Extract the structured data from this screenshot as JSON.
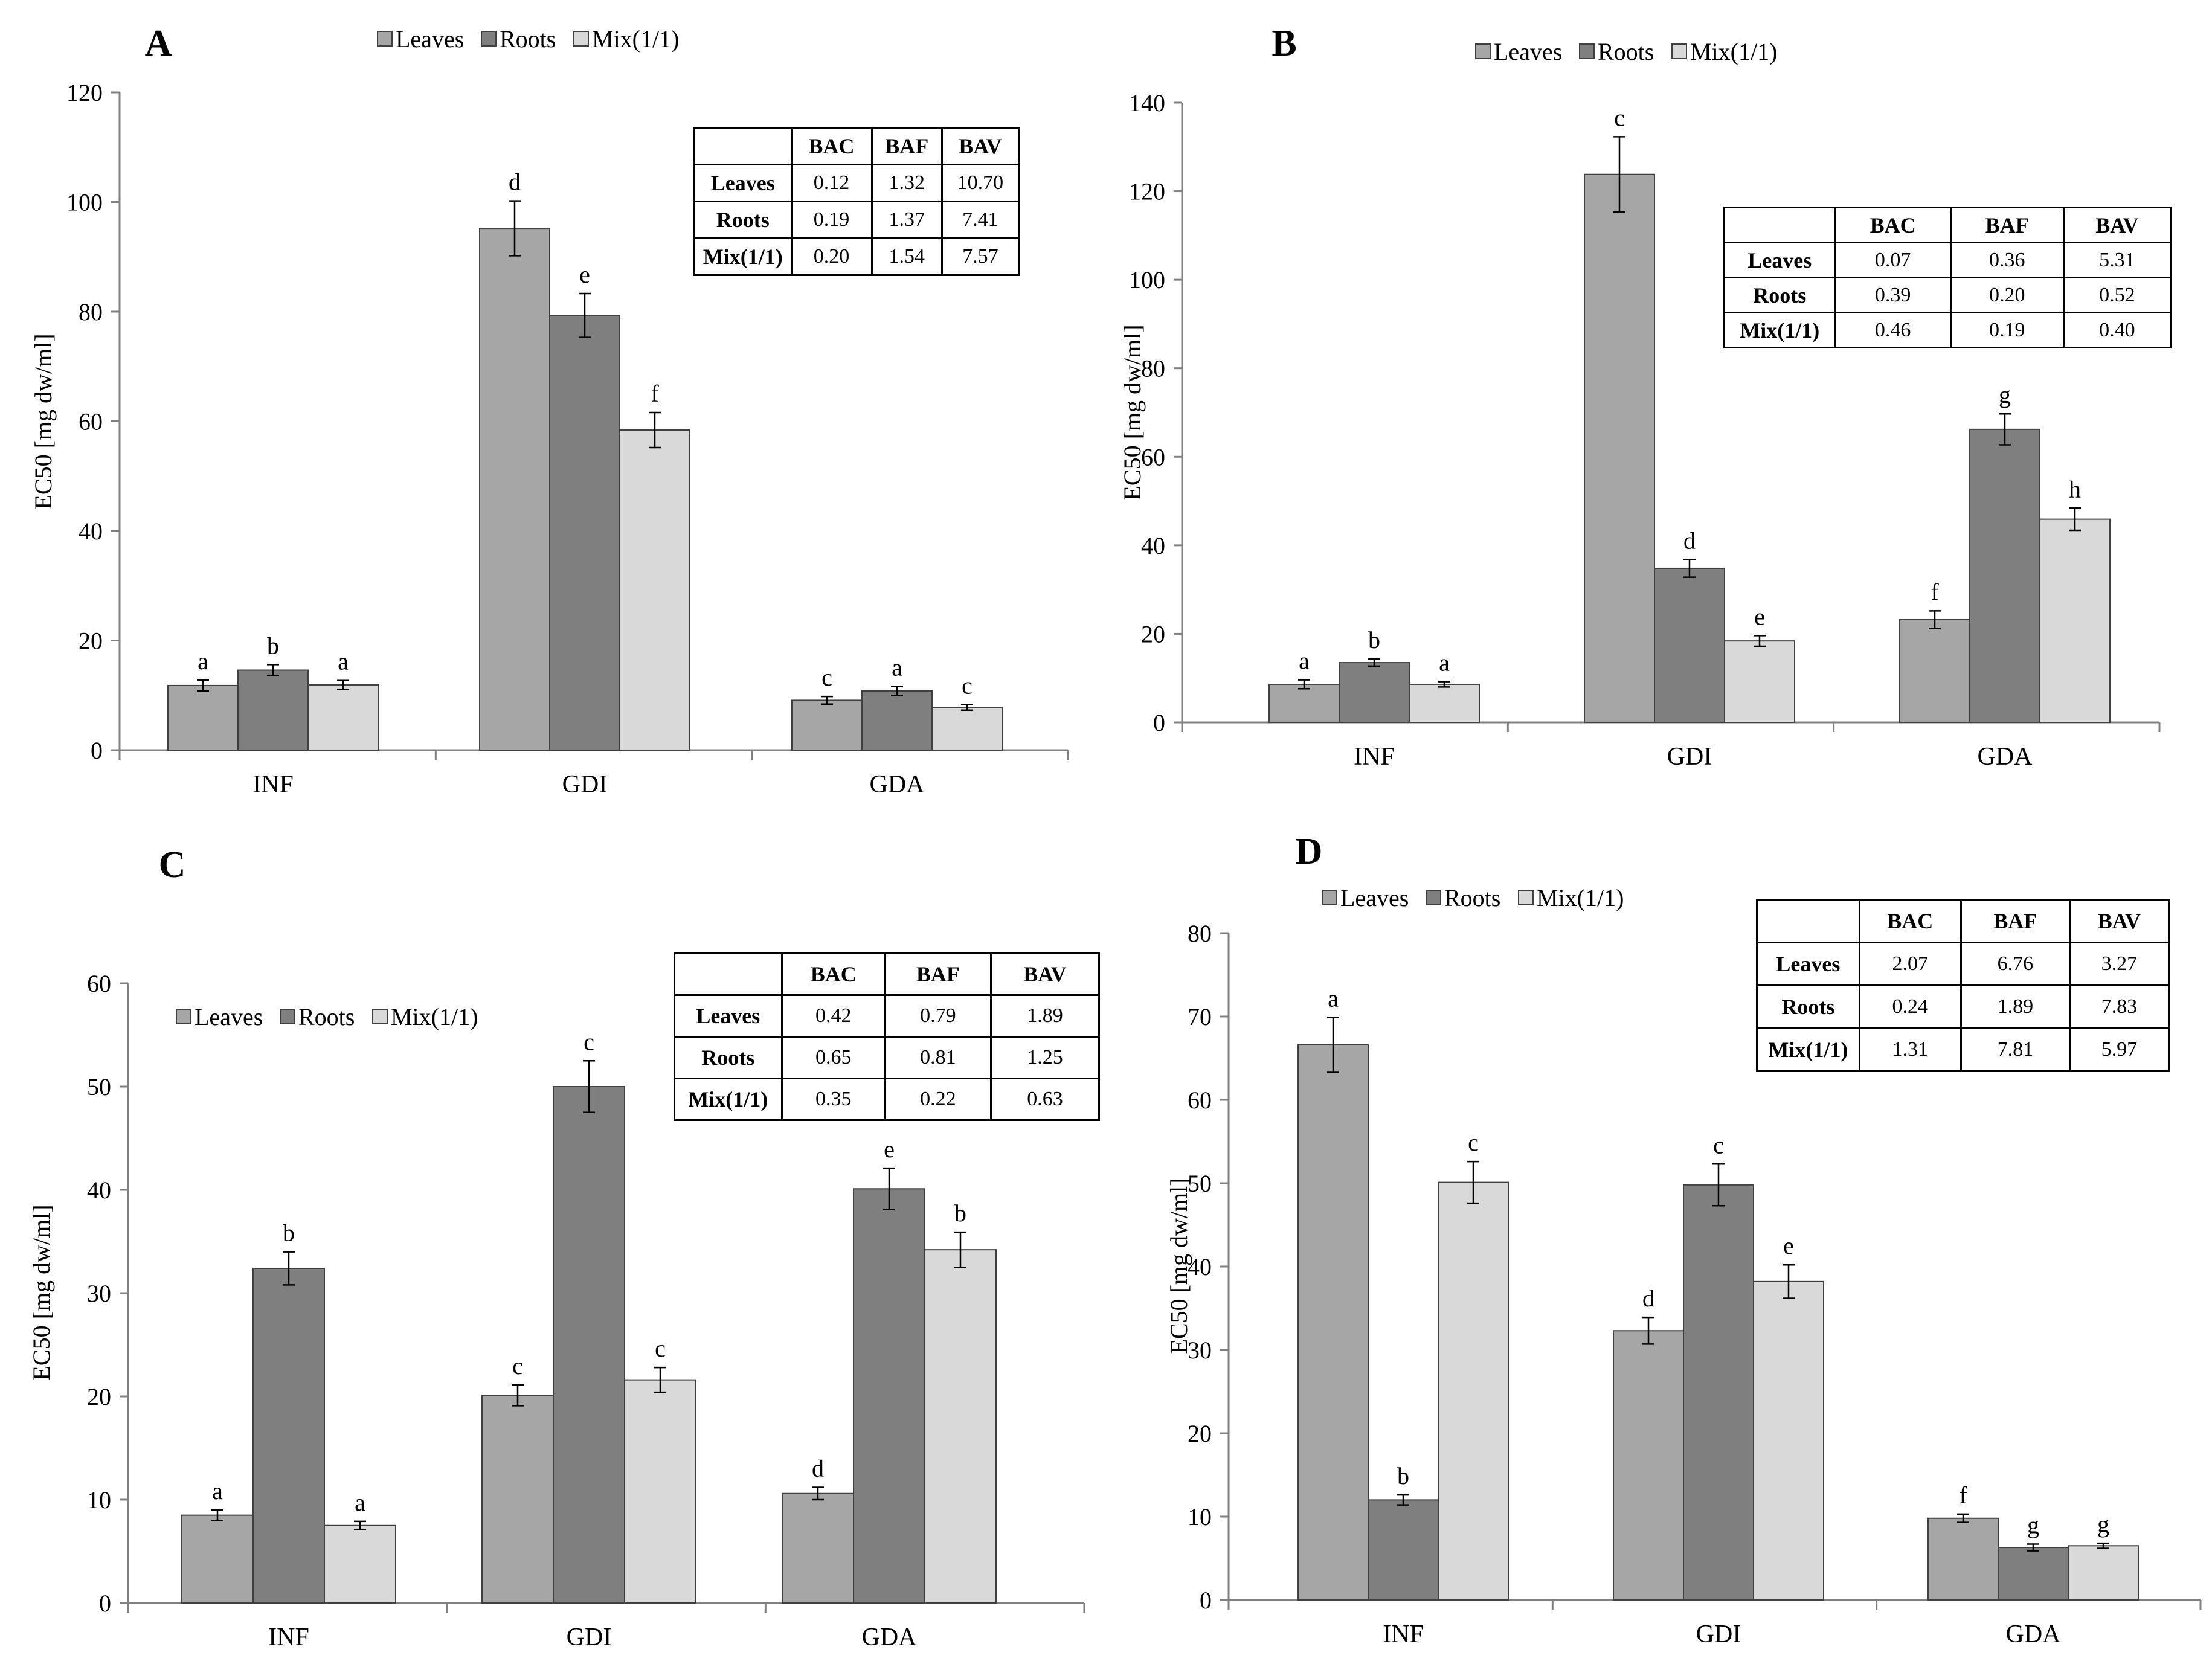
{
  "colors": {
    "Leaves": "#a6a6a6",
    "Roots": "#7f7f7f",
    "Mix(1/1)": "#d9d9d9"
  },
  "chart_data": [
    {
      "type": "bar",
      "panel_label": "A",
      "legend": [
        "Leaves",
        "Roots",
        "Mix(1/1)"
      ],
      "legend_position": "top",
      "ylabel": "EC50 [mg dw/ml]",
      "ylim": [
        0,
        120
      ],
      "yticks": [
        0,
        20,
        40,
        60,
        80,
        100,
        120
      ],
      "categories": [
        "INF",
        "GDI",
        "GDA"
      ],
      "series": [
        {
          "name": "Leaves",
          "values": [
            11.8,
            95.2,
            9.1
          ],
          "errors": [
            1.0,
            5.0,
            0.7
          ],
          "letters": [
            "a",
            "d",
            "c"
          ]
        },
        {
          "name": "Roots",
          "values": [
            14.6,
            79.3,
            10.8
          ],
          "errors": [
            1.0,
            4.0,
            0.8
          ],
          "letters": [
            "b",
            "e",
            "a"
          ]
        },
        {
          "name": "Mix(1/1)",
          "values": [
            11.9,
            58.4,
            7.8
          ],
          "errors": [
            0.8,
            3.2,
            0.5
          ],
          "letters": [
            "a",
            "f",
            "c"
          ]
        }
      ],
      "table": {
        "header": [
          "",
          "BAC",
          "BAF",
          "BAV"
        ],
        "rows": [
          [
            "Leaves",
            "0.12",
            "1.32",
            "10.70"
          ],
          [
            "Roots",
            "0.19",
            "1.37",
            "7.41"
          ],
          [
            "Mix(1/1)",
            "0.20",
            "1.54",
            "7.57"
          ]
        ]
      }
    },
    {
      "type": "bar",
      "panel_label": "B",
      "legend": [
        "Leaves",
        "Roots",
        "Mix(1/1)"
      ],
      "legend_position": "top",
      "ylabel": "EC50 [mg dw/ml]",
      "ylim": [
        0,
        140
      ],
      "yticks": [
        0,
        20,
        40,
        60,
        80,
        100,
        120,
        140
      ],
      "categories": [
        "INF",
        "GDI",
        "GDA"
      ],
      "series": [
        {
          "name": "Leaves",
          "values": [
            8.6,
            123.8,
            23.2
          ],
          "errors": [
            1.0,
            8.5,
            2.0
          ],
          "letters": [
            "a",
            "c",
            "f"
          ]
        },
        {
          "name": "Roots",
          "values": [
            13.5,
            34.8,
            66.2
          ],
          "errors": [
            0.8,
            2.0,
            3.5
          ],
          "letters": [
            "b",
            "d",
            "g"
          ]
        },
        {
          "name": "Mix(1/1)",
          "values": [
            8.6,
            18.4,
            45.9
          ],
          "errors": [
            0.6,
            1.2,
            2.5
          ],
          "letters": [
            "a",
            "e",
            "h"
          ]
        }
      ],
      "table": {
        "header": [
          "",
          "BAC",
          "BAF",
          "BAV"
        ],
        "rows": [
          [
            "Leaves",
            "0.07",
            "0.36",
            "5.31"
          ],
          [
            "Roots",
            "0.39",
            "0.20",
            "0.52"
          ],
          [
            "Mix(1/1)",
            "0.46",
            "0.19",
            "0.40"
          ]
        ]
      }
    },
    {
      "type": "bar",
      "panel_label": "C",
      "legend": [
        "Leaves",
        "Roots",
        "Mix(1/1)"
      ],
      "legend_position": "top-left",
      "ylabel": "EC50 [mg dw/ml]",
      "ylim": [
        0,
        60
      ],
      "yticks": [
        0,
        10,
        20,
        30,
        40,
        50,
        60
      ],
      "categories": [
        "INF",
        "GDI",
        "GDA"
      ],
      "series": [
        {
          "name": "Leaves",
          "values": [
            8.5,
            20.1,
            10.6
          ],
          "errors": [
            0.5,
            1.0,
            0.6
          ],
          "letters": [
            "a",
            "c",
            "d"
          ]
        },
        {
          "name": "Roots",
          "values": [
            32.4,
            50.0,
            40.1
          ],
          "errors": [
            1.6,
            2.5,
            2.0
          ],
          "letters": [
            "b",
            "c",
            "e"
          ]
        },
        {
          "name": "Mix(1/1)",
          "values": [
            7.5,
            21.6,
            34.2
          ],
          "errors": [
            0.4,
            1.2,
            1.7
          ],
          "letters": [
            "a",
            "c",
            "b"
          ]
        }
      ],
      "table": {
        "header": [
          "",
          "BAC",
          "BAF",
          "BAV"
        ],
        "rows": [
          [
            "Leaves",
            "0.42",
            "0.79",
            "1.89"
          ],
          [
            "Roots",
            "0.65",
            "0.81",
            "1.25"
          ],
          [
            "Mix(1/1)",
            "0.35",
            "0.22",
            "0.63"
          ]
        ]
      }
    },
    {
      "type": "bar",
      "panel_label": "D",
      "legend": [
        "Leaves",
        "Roots",
        "Mix(1/1)"
      ],
      "legend_position": "top-left",
      "ylabel": "EC50 [mg dw/ml]",
      "ylim": [
        0,
        80
      ],
      "yticks": [
        0,
        10,
        20,
        30,
        40,
        50,
        60,
        70,
        80
      ],
      "categories": [
        "INF",
        "GDI",
        "GDA"
      ],
      "series": [
        {
          "name": "Leaves",
          "values": [
            66.6,
            32.3,
            9.8
          ],
          "errors": [
            3.3,
            1.6,
            0.5
          ],
          "letters": [
            "a",
            "d",
            "f"
          ]
        },
        {
          "name": "Roots",
          "values": [
            12.0,
            49.8,
            6.3
          ],
          "errors": [
            0.6,
            2.5,
            0.4
          ],
          "letters": [
            "b",
            "c",
            "g"
          ]
        },
        {
          "name": "Mix(1/1)",
          "values": [
            50.1,
            38.2,
            6.5
          ],
          "errors": [
            2.5,
            2.0,
            0.3
          ],
          "letters": [
            "c",
            "e",
            "g"
          ]
        }
      ],
      "table": {
        "header": [
          "",
          "BAC",
          "BAF",
          "BAV"
        ],
        "rows": [
          [
            "Leaves",
            "2.07",
            "6.76",
            "3.27"
          ],
          [
            "Roots",
            "0.24",
            "1.89",
            "7.83"
          ],
          [
            "Mix(1/1)",
            "1.31",
            "7.81",
            "5.97"
          ]
        ]
      }
    }
  ]
}
